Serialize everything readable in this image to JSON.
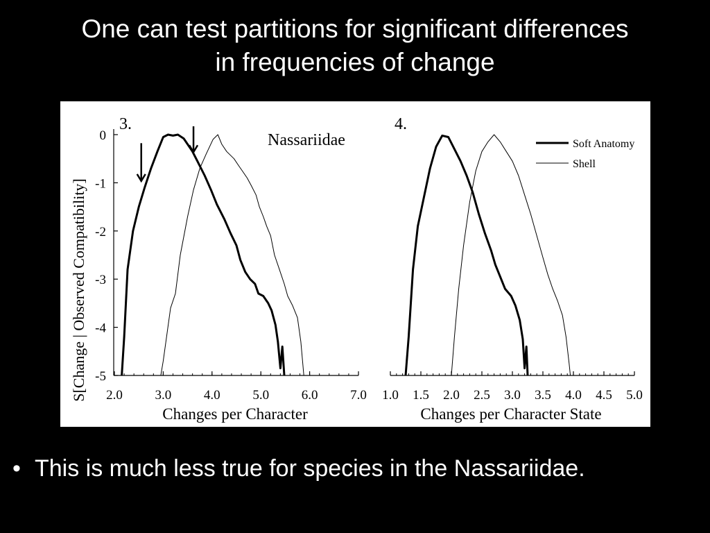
{
  "slide": {
    "title_line1": "One can test partitions for significant differences",
    "title_line2": "in frequencies of change",
    "bullet": "This is much less true for species in the Nassariidae."
  },
  "colors": {
    "background": "#000000",
    "text": "#ffffff",
    "figure_bg": "#ffffff",
    "ink": "#000000"
  },
  "chart_data": [
    {
      "type": "line",
      "panel_label": "3.",
      "title": "Nassariidae",
      "xlabel": "Changes per Character",
      "ylabel": "S[Change | Observed Compatibility]",
      "xlim": [
        2.0,
        7.0
      ],
      "ylim": [
        -5,
        0
      ],
      "xticks": [
        "2.0",
        "3.0",
        "4.0",
        "5.0",
        "6.0",
        "7.0"
      ],
      "yticks": [
        "0",
        "-1",
        "-2",
        "-3",
        "-4",
        "-5"
      ],
      "arrows_at_x": [
        2.55,
        3.62
      ],
      "series": [
        {
          "style": "thick",
          "points": [
            [
              2.15,
              -5.0
            ],
            [
              2.2,
              -4.2
            ],
            [
              2.27,
              -2.8
            ],
            [
              2.38,
              -2.0
            ],
            [
              2.5,
              -1.5
            ],
            [
              2.62,
              -1.1
            ],
            [
              2.75,
              -0.7
            ],
            [
              2.88,
              -0.35
            ],
            [
              3.0,
              -0.05
            ],
            [
              3.1,
              0.0
            ],
            [
              3.2,
              -0.02
            ],
            [
              3.3,
              0.0
            ],
            [
              3.42,
              -0.08
            ],
            [
              3.5,
              -0.2
            ],
            [
              3.6,
              -0.35
            ],
            [
              3.7,
              -0.55
            ],
            [
              3.85,
              -0.85
            ],
            [
              3.98,
              -1.15
            ],
            [
              4.1,
              -1.45
            ],
            [
              4.25,
              -1.75
            ],
            [
              4.38,
              -2.05
            ],
            [
              4.5,
              -2.3
            ],
            [
              4.58,
              -2.6
            ],
            [
              4.68,
              -2.85
            ],
            [
              4.78,
              -3.0
            ],
            [
              4.88,
              -3.1
            ],
            [
              4.95,
              -3.3
            ],
            [
              5.05,
              -3.35
            ],
            [
              5.15,
              -3.5
            ],
            [
              5.22,
              -3.65
            ],
            [
              5.3,
              -3.95
            ],
            [
              5.35,
              -4.3
            ],
            [
              5.4,
              -4.85
            ],
            [
              5.44,
              -4.4
            ],
            [
              5.48,
              -5.0
            ]
          ]
        },
        {
          "style": "thin",
          "points": [
            [
              2.95,
              -5.0
            ],
            [
              3.0,
              -4.7
            ],
            [
              3.15,
              -3.6
            ],
            [
              3.25,
              -3.3
            ],
            [
              3.35,
              -2.5
            ],
            [
              3.5,
              -1.7
            ],
            [
              3.62,
              -1.15
            ],
            [
              3.75,
              -0.7
            ],
            [
              3.88,
              -0.4
            ],
            [
              4.02,
              -0.1
            ],
            [
              4.12,
              0.0
            ],
            [
              4.2,
              -0.2
            ],
            [
              4.3,
              -0.35
            ],
            [
              4.45,
              -0.5
            ],
            [
              4.55,
              -0.65
            ],
            [
              4.62,
              -0.75
            ],
            [
              4.72,
              -0.9
            ],
            [
              4.8,
              -1.05
            ],
            [
              4.9,
              -1.25
            ],
            [
              4.97,
              -1.5
            ],
            [
              5.05,
              -1.7
            ],
            [
              5.12,
              -1.9
            ],
            [
              5.2,
              -2.1
            ],
            [
              5.28,
              -2.5
            ],
            [
              5.38,
              -2.8
            ],
            [
              5.48,
              -3.1
            ],
            [
              5.55,
              -3.35
            ],
            [
              5.65,
              -3.55
            ],
            [
              5.75,
              -3.8
            ],
            [
              5.82,
              -4.3
            ],
            [
              5.88,
              -5.0
            ]
          ]
        }
      ]
    },
    {
      "type": "line",
      "panel_label": "4.",
      "xlabel": "Changes per Character State",
      "xlim": [
        1.0,
        5.0
      ],
      "ylim": [
        -5,
        0
      ],
      "xticks": [
        "1.0",
        "1.5",
        "2.0",
        "2.5",
        "3.0",
        "3.5",
        "4.0",
        "4.5",
        "5.0"
      ],
      "legend": [
        "Soft Anatomy",
        "Shell"
      ],
      "legend_position": "top-right",
      "series": [
        {
          "name": "Soft Anatomy",
          "style": "thick",
          "points": [
            [
              1.25,
              -5.0
            ],
            [
              1.3,
              -4.2
            ],
            [
              1.37,
              -2.8
            ],
            [
              1.45,
              -1.9
            ],
            [
              1.55,
              -1.3
            ],
            [
              1.65,
              -0.7
            ],
            [
              1.75,
              -0.25
            ],
            [
              1.85,
              -0.02
            ],
            [
              1.95,
              -0.05
            ],
            [
              2.05,
              -0.3
            ],
            [
              2.15,
              -0.55
            ],
            [
              2.25,
              -0.85
            ],
            [
              2.35,
              -1.2
            ],
            [
              2.45,
              -1.65
            ],
            [
              2.55,
              -2.05
            ],
            [
              2.65,
              -2.4
            ],
            [
              2.72,
              -2.7
            ],
            [
              2.8,
              -2.95
            ],
            [
              2.88,
              -3.2
            ],
            [
              2.98,
              -3.35
            ],
            [
              3.05,
              -3.55
            ],
            [
              3.12,
              -3.85
            ],
            [
              3.17,
              -4.25
            ],
            [
              3.2,
              -4.85
            ],
            [
              3.23,
              -4.4
            ],
            [
              3.25,
              -5.0
            ]
          ]
        },
        {
          "name": "Shell",
          "style": "thin",
          "points": [
            [
              2.0,
              -5.0
            ],
            [
              2.05,
              -4.2
            ],
            [
              2.12,
              -3.2
            ],
            [
              2.2,
              -2.3
            ],
            [
              2.3,
              -1.4
            ],
            [
              2.4,
              -0.75
            ],
            [
              2.5,
              -0.35
            ],
            [
              2.6,
              -0.15
            ],
            [
              2.7,
              0.0
            ],
            [
              2.8,
              -0.15
            ],
            [
              2.9,
              -0.35
            ],
            [
              3.0,
              -0.55
            ],
            [
              3.1,
              -0.85
            ],
            [
              3.2,
              -1.25
            ],
            [
              3.3,
              -1.65
            ],
            [
              3.4,
              -2.1
            ],
            [
              3.5,
              -2.55
            ],
            [
              3.58,
              -2.9
            ],
            [
              3.66,
              -3.2
            ],
            [
              3.74,
              -3.45
            ],
            [
              3.82,
              -3.75
            ],
            [
              3.88,
              -4.2
            ],
            [
              3.93,
              -4.75
            ],
            [
              3.95,
              -5.0
            ]
          ]
        }
      ]
    }
  ]
}
